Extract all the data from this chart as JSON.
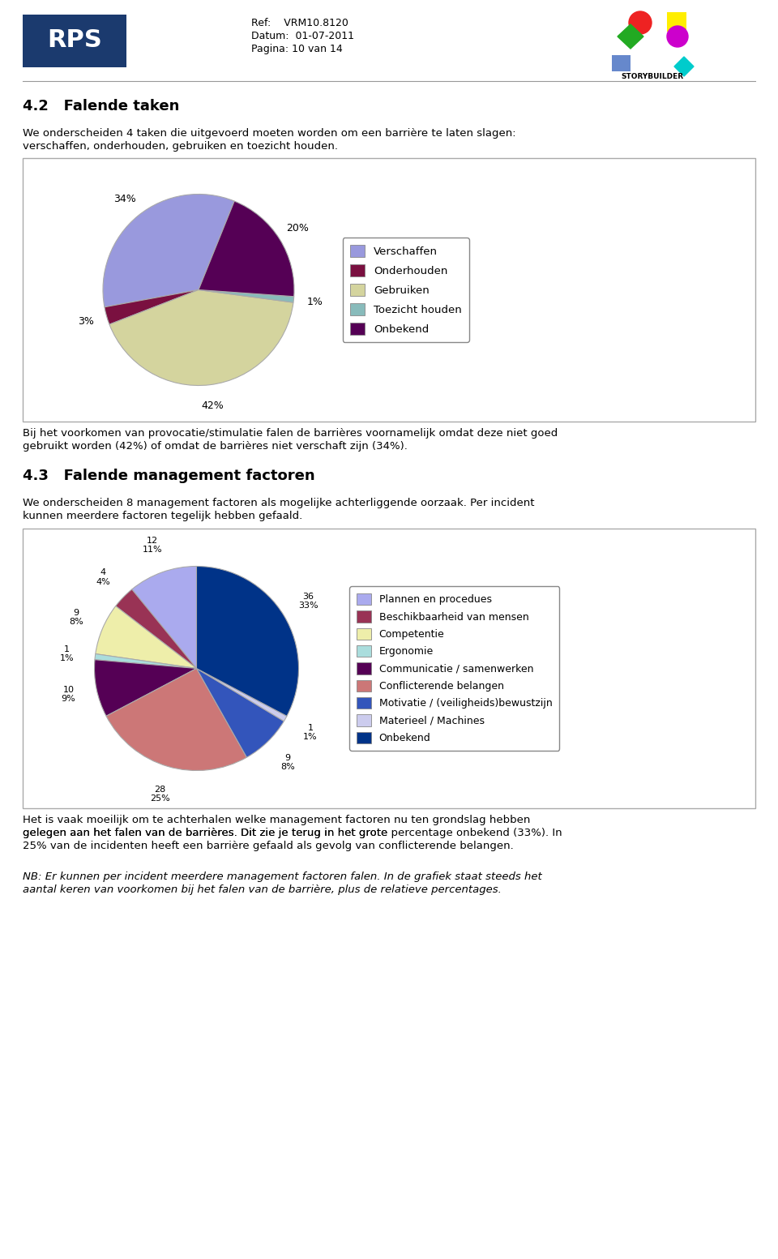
{
  "header_ref": "Ref:    VRM10.8120",
  "header_datum": "Datum:  01-07-2011",
  "header_pagina": "Pagina: 10 van 14",
  "sec1_title": "4.2   Falende taken",
  "sec1_line1": "We onderscheiden 4 taken die uitgevoerd moeten worden om een barrière te laten slagen:",
  "sec1_line2": "verschaffen, onderhouden, gebruiken en toezicht houden.",
  "pie1_values": [
    34,
    3,
    42,
    1,
    20
  ],
  "pie1_colors": [
    "#9999dd",
    "#7a1040",
    "#d4d49e",
    "#88bbbb",
    "#550055"
  ],
  "pie1_legend": [
    "Verschaffen",
    "Onderhouden",
    "Gebruiken",
    "Toezicht houden",
    "Onbekend"
  ],
  "pie1_pct": [
    "34%",
    "3%",
    "42%",
    "1%",
    "20%"
  ],
  "pie1_startangle": 68,
  "cap1_line1": "Bij het voorkomen van provocatie/stimulatie falen de barrières voornamelijk omdat deze niet goed",
  "cap1_line2": "gebruikt worden (42%) of omdat de barrières niet verschaft zijn (34%).",
  "sec2_title": "4.3   Falende management factoren",
  "sec2_line1": "We onderscheiden 8 management factoren als mogelijke achterliggende oorzaak. Per incident",
  "sec2_line2": "kunnen meerdere factoren tegelijk hebben gefaald.",
  "pie2_values": [
    12,
    4,
    9,
    1,
    10,
    28,
    9,
    1,
    36
  ],
  "pie2_colors": [
    "#aaaaee",
    "#993355",
    "#eeeeaa",
    "#aadddd",
    "#550055",
    "#cc7777",
    "#3355bb",
    "#ccccee",
    "#003388"
  ],
  "pie2_legend": [
    "Plannen en procedues",
    "Beschikbaarheid van mensen",
    "Competentie",
    "Ergonomie",
    "Communicatie / samenwerken",
    "Conflicterende belangen",
    "Motivatie / (veiligheids)bewustzijn",
    "Materieel / Machines",
    "Onbekend"
  ],
  "pie2_pct": [
    "11%",
    "4%",
    "8%",
    "1%",
    "9%",
    "25%",
    "8%",
    "1%",
    "33%"
  ],
  "pie2_counts": [
    "12",
    "4",
    "9",
    "1",
    "10",
    "28",
    "9",
    "1",
    "36"
  ],
  "pie2_startangle": 90,
  "cap2_line1": "Het is vaak moeilijk om te achterhalen welke management factoren nu ten grondslag hebben",
  "cap2_line2": "gelegen aan het falen van de barrières. Dit zie je terug in het grote ",
  "cap2_line2_italic": "percentage onbekend (33%)",
  "cap2_line2_end": ". In",
  "cap2_line3": "25% van de incidenten heeft een barrière gefaald als gevolg van conflicterende belangen.",
  "note_line1": "NB: Er kunnen per incident meerdere management factoren falen. In de grafiek staat steeds het",
  "note_line2": "aantal keren van voorkomen bij het falen van de barrière, plus de relatieve percentages."
}
